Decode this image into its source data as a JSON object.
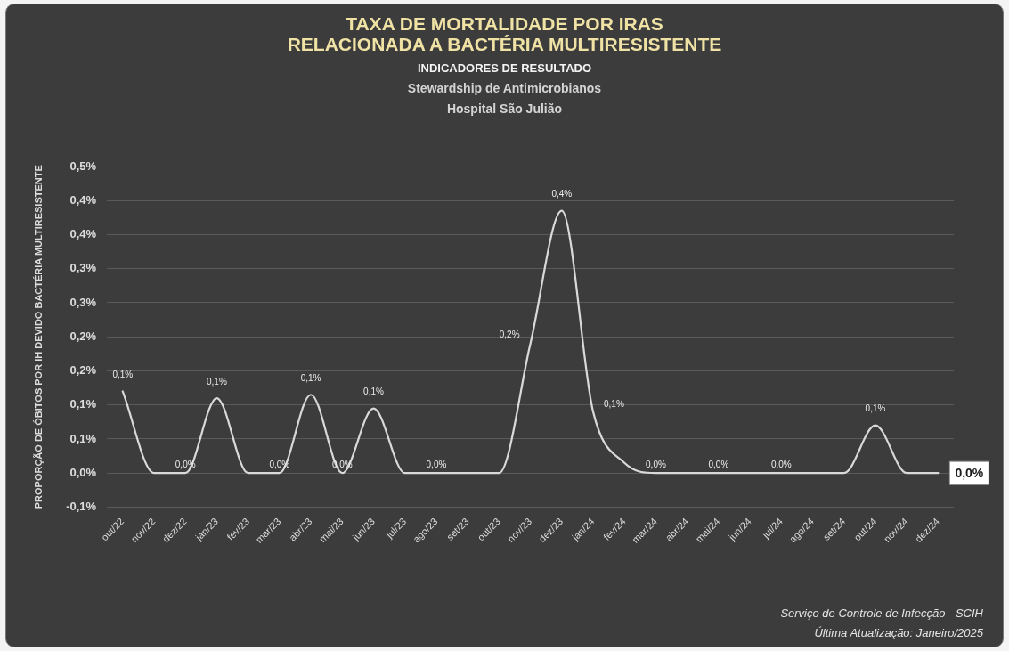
{
  "chart_data": {
    "type": "line",
    "title": "TAXA DE MORTALIDADE POR IRAS\nRELACIONADA A BACTÉRIA MULTIRESISTENTE",
    "subtitle": "INDICADORES DE RESULTADO\nStewardship de Antimicrobianos\nHospital São Julião",
    "ylabel": "PROPORÇÃO DE ÓBITOS POR IH DEVIDO BACTÉRIA MULTIRESISTENTE",
    "categories": [
      "out/22",
      "nov/22",
      "dez/22",
      "jan/23",
      "fev/23",
      "mar/23",
      "abr/23",
      "mai/23",
      "jun/23",
      "jul/23",
      "ago/23",
      "set/23",
      "out/23",
      "nov/23",
      "dez/23",
      "jan/24",
      "fev/24",
      "mar/24",
      "abr/24",
      "mai/24",
      "jun/24",
      "jul/24",
      "ago/24",
      "set/24",
      "out/24",
      "nov/24",
      "dez/24"
    ],
    "series": [
      {
        "color": "#d9d9d9",
        "values": [
          0.12,
          0,
          0,
          0.11,
          0,
          0,
          0.115,
          0,
          0.095,
          0,
          0,
          0,
          0,
          0.19,
          0.385,
          0.09,
          0.015,
          0,
          0,
          0,
          0,
          0,
          0,
          0,
          0.07,
          0,
          0
        ],
        "value_labels": [
          "0,1%",
          null,
          "0,0%",
          "0,1%",
          null,
          "0,0%",
          "0,1%",
          "0,0%",
          "0,1%",
          null,
          "0,0%",
          null,
          null,
          "0,2%",
          "0,4%",
          "0,1%",
          null,
          "0,0%",
          null,
          "0,0%",
          null,
          "0,0%",
          null,
          null,
          "0,1%",
          null,
          "0,0%"
        ]
      }
    ],
    "ylim": [
      -0.05,
      0.45
    ],
    "yticks": [
      {
        "value": -0.05,
        "label": "-0,1%"
      },
      {
        "value": 0,
        "label": "0,0%"
      },
      {
        "value": 0.05,
        "label": "0,1%"
      },
      {
        "value": 0.1,
        "label": "0,1%"
      },
      {
        "value": 0.15,
        "label": "0,2%"
      },
      {
        "value": 0.2,
        "label": "0,2%"
      },
      {
        "value": 0.25,
        "label": "0,3%"
      },
      {
        "value": 0.3,
        "label": "0,3%"
      },
      {
        "value": 0.35,
        "label": "0,4%"
      },
      {
        "value": 0.4,
        "label": "0,4%"
      },
      {
        "value": 0.45,
        "label": "0,5%"
      }
    ],
    "grid": "y",
    "legend": false,
    "marker": "none",
    "annotations": [
      "Serviço de Controle de Infecção - SCIH",
      "Última Atualização: Janeiro/2025"
    ]
  }
}
